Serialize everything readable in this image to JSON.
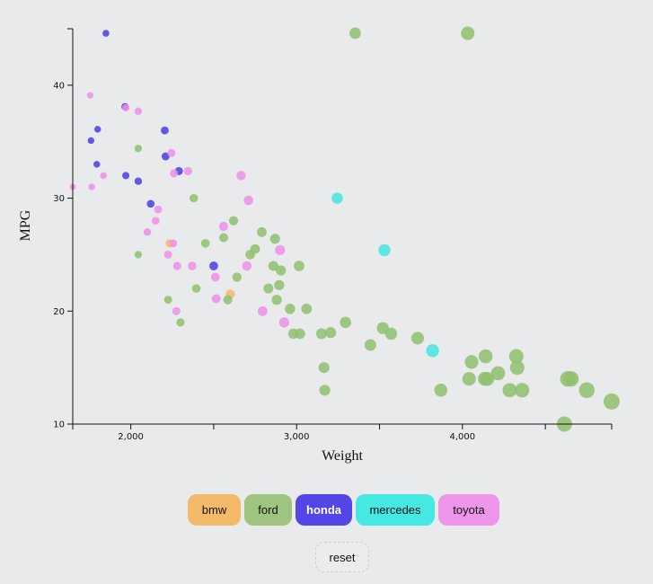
{
  "chart_data": {
    "type": "scatter",
    "xlabel": "Weight",
    "ylabel": "MPG",
    "xlim": [
      1650,
      4900
    ],
    "ylim": [
      10,
      45
    ],
    "x_ticks": [
      2000,
      3000,
      4000
    ],
    "x_tick_labels": [
      "2,000",
      "3,000",
      "4,000"
    ],
    "y_ticks": [
      10,
      20,
      30,
      40
    ],
    "y_tick_labels": [
      "10",
      "20",
      "30",
      "40"
    ],
    "point_size": "proportional to weight",
    "series": [
      {
        "name": "bmw",
        "color": "#f5b96a",
        "points": [
          [
            2234,
            26
          ],
          [
            2600,
            21.5
          ]
        ]
      },
      {
        "name": "ford",
        "color": "#8fbf6e",
        "points": [
          [
            3353,
            44.6
          ],
          [
            4032,
            44.6
          ],
          [
            2045,
            34.4
          ],
          [
            2045,
            25
          ],
          [
            2380,
            30
          ],
          [
            2225,
            21
          ],
          [
            2300,
            19
          ],
          [
            2395,
            22
          ],
          [
            2450,
            26
          ],
          [
            2560,
            26.5
          ],
          [
            2585,
            21
          ],
          [
            2620,
            28
          ],
          [
            2640,
            23
          ],
          [
            2720,
            25
          ],
          [
            2750,
            25.5
          ],
          [
            2790,
            27
          ],
          [
            2830,
            22
          ],
          [
            2860,
            24
          ],
          [
            2870,
            26.4
          ],
          [
            2880,
            21
          ],
          [
            2895,
            22.3
          ],
          [
            2905,
            23.6
          ],
          [
            2960,
            20.2
          ],
          [
            2980,
            18
          ],
          [
            3015,
            24
          ],
          [
            3020,
            18
          ],
          [
            3060,
            20.2
          ],
          [
            3150,
            18
          ],
          [
            3165,
            15
          ],
          [
            3170,
            13
          ],
          [
            3205,
            18.1
          ],
          [
            3295,
            19
          ],
          [
            3445,
            17
          ],
          [
            3520,
            18.5
          ],
          [
            3570,
            18
          ],
          [
            3730,
            17.6
          ],
          [
            3870,
            13
          ],
          [
            4040,
            14
          ],
          [
            4055,
            15.5
          ],
          [
            4135,
            14
          ],
          [
            4140,
            16
          ],
          [
            4150,
            14
          ],
          [
            4215,
            14.5
          ],
          [
            4285,
            13
          ],
          [
            4325,
            16
          ],
          [
            4330,
            15
          ],
          [
            4360,
            13
          ],
          [
            4615,
            10
          ],
          [
            4635,
            14
          ],
          [
            4655,
            14
          ],
          [
            4750,
            13
          ],
          [
            4900,
            12
          ]
        ]
      },
      {
        "name": "honda",
        "color": "#4a3fe0",
        "points": [
          [
            1850,
            44.6
          ],
          [
            1760,
            35.1
          ],
          [
            1800,
            36.1
          ],
          [
            1795,
            33
          ],
          [
            1965,
            38.1
          ],
          [
            1970,
            32
          ],
          [
            2045,
            31.5
          ],
          [
            2120,
            29.5
          ],
          [
            2205,
            36
          ],
          [
            2210,
            33.7
          ],
          [
            2290,
            32.4
          ],
          [
            2500,
            24
          ]
        ]
      },
      {
        "name": "mercedes",
        "color": "#44e5e0",
        "points": [
          [
            3245,
            30
          ],
          [
            3530,
            25.4
          ],
          [
            3820,
            16.5
          ]
        ]
      },
      {
        "name": "toyota",
        "color": "#ee8fe8",
        "points": [
          [
            1650,
            31
          ],
          [
            1755,
            39.1
          ],
          [
            1765,
            31
          ],
          [
            1835,
            32
          ],
          [
            1970,
            38
          ],
          [
            2045,
            37.7
          ],
          [
            2100,
            27
          ],
          [
            2150,
            28
          ],
          [
            2165,
            29
          ],
          [
            2225,
            25
          ],
          [
            2245,
            34
          ],
          [
            2255,
            26
          ],
          [
            2260,
            32.2
          ],
          [
            2275,
            20
          ],
          [
            2280,
            24
          ],
          [
            2345,
            32.4
          ],
          [
            2370,
            24
          ],
          [
            2510,
            23
          ],
          [
            2515,
            21.1
          ],
          [
            2560,
            27.5
          ],
          [
            2665,
            32
          ],
          [
            2700,
            24
          ],
          [
            2710,
            29.8
          ],
          [
            2795,
            20
          ],
          [
            2900,
            25.4
          ],
          [
            2925,
            19
          ]
        ]
      }
    ]
  },
  "filters": {
    "bmw": {
      "label": "bmw",
      "color": "#f5b96a",
      "text_color": "#111111"
    },
    "ford": {
      "label": "ford",
      "color": "#9fc47f",
      "text_color": "#111111"
    },
    "honda": {
      "label": "honda",
      "color": "#5446e6",
      "text_color": "#ffffff"
    },
    "mercedes": {
      "label": "mercedes",
      "color": "#46e8e3",
      "text_color": "#111111"
    },
    "toyota": {
      "label": "toyota",
      "color": "#ee96ea",
      "text_color": "#111111"
    }
  },
  "reset_label": "reset"
}
